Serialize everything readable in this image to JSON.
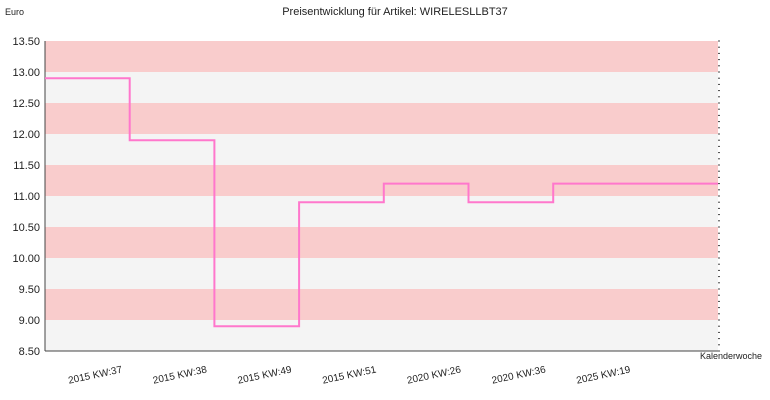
{
  "chart_data": {
    "type": "line",
    "step": true,
    "title": "Preisentwicklung für Artikel: WIRELESLLBT37",
    "ylabel": "Euro",
    "xlabel": "Kalenderwoche",
    "ylim": [
      8.5,
      13.5
    ],
    "yticks": [
      "8.50",
      "9.00",
      "9.50",
      "10.00",
      "10.50",
      "11.00",
      "11.50",
      "12.00",
      "12.50",
      "13.00",
      "13.50"
    ],
    "categories": [
      "2015 KW:37",
      "2015 KW:38",
      "2015 KW:49",
      "2015 KW:51",
      "2020 KW:26",
      "2020 KW:36",
      "2025 KW:19"
    ],
    "series": [
      {
        "values": [
          12.9,
          11.9,
          8.9,
          10.9,
          11.2,
          10.9,
          11.2
        ]
      }
    ],
    "colors": {
      "line": "#ff77cc",
      "band_pink": "#f9cccc",
      "band_grey": "#f4f4f4"
    },
    "grid": false
  }
}
